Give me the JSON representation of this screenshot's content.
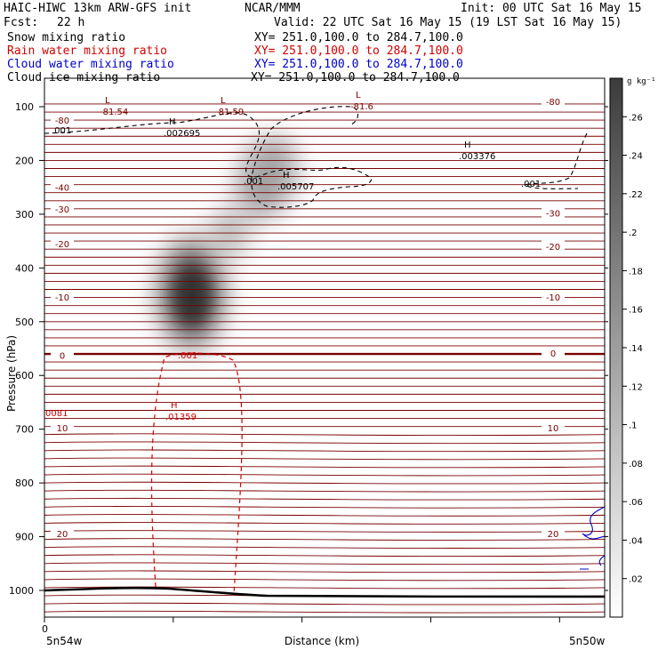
{
  "header": {
    "model": "HAIC-HIWC 13km ARW-GFS init",
    "org": "NCAR/MMM",
    "init": "Init: 00 UTC Sat 16 May 15",
    "fcst_label": "Fcst:",
    "fcst_value": "22 h",
    "valid": "Valid: 22 UTC Sat 16 May 15 (19 LST Sat 16 May 15)",
    "fields": [
      {
        "name": "Snow mixing ratio",
        "xy": "XY= 251.0,100.0 to 284.7,100.0",
        "color": "#000000"
      },
      {
        "name": "Rain water mixing ratio",
        "xy": "XY= 251.0,100.0 to 284.7,100.0",
        "color": "#d40000"
      },
      {
        "name": "Cloud water mixing ratio",
        "xy": "XY= 251.0,100.0 to 284.7,100.0",
        "color": "#0000cc"
      },
      {
        "name": "Cloud ice mixing ratio",
        "xy": "XY= 251.0,100.0 to 284.7,100.0",
        "color": "#000000"
      }
    ]
  },
  "chart_data": {
    "type": "heatmap",
    "xlabel": "Distance (km)",
    "ylabel": "Pressure (hPa)",
    "x_start_label": "0",
    "x_left_label": "5n54w",
    "x_right_label": "5n50w",
    "ylim": [
      1050,
      50
    ],
    "yticks": [
      100,
      200,
      300,
      400,
      500,
      600,
      700,
      800,
      900,
      1000
    ],
    "colorbar": {
      "unit": "g kg⁻¹",
      "ticks": [
        ".02",
        ".04",
        ".06",
        ".08",
        ".1",
        ".12",
        ".14",
        ".16",
        ".18",
        ".2",
        ".22",
        ".24",
        ".26"
      ],
      "range": [
        0,
        0.28
      ]
    },
    "temperature_contour_labels": [
      {
        "value": "-80",
        "side": "left",
        "p": 125
      },
      {
        "value": "-80",
        "side": "right",
        "p": 90
      },
      {
        "value": "-40",
        "side": "left",
        "p": 250
      },
      {
        "value": "-30",
        "side": "left",
        "p": 290
      },
      {
        "value": "-30",
        "side": "right",
        "p": 298
      },
      {
        "value": "-20",
        "side": "left",
        "p": 355
      },
      {
        "value": "-20",
        "side": "right",
        "p": 360
      },
      {
        "value": "-10",
        "side": "left",
        "p": 454
      },
      {
        "value": "-10",
        "side": "right",
        "p": 454
      },
      {
        "value": "0",
        "side": "left",
        "p": 562
      },
      {
        "value": "0",
        "side": "right",
        "p": 558
      },
      {
        "value": "10",
        "side": "left",
        "p": 697
      },
      {
        "value": "10",
        "side": "right",
        "p": 697
      },
      {
        "value": "20",
        "side": "left",
        "p": 894
      },
      {
        "value": "20",
        "side": "right",
        "p": 894
      }
    ],
    "extrema_labels": [
      {
        "mark": "L",
        "value": "-81.54",
        "color": "#7a0000"
      },
      {
        "mark": "L",
        "value": "-81.59",
        "color": "#7a0000"
      },
      {
        "mark": "L",
        "value": "-81.6",
        "color": "#7a0000"
      },
      {
        "mark": "H",
        "value": ".002695",
        "color": "#000000"
      },
      {
        "mark": "H",
        "value": ".005707",
        "color": "#000000"
      },
      {
        "mark": "H",
        "value": ".003376",
        "color": "#000000"
      },
      {
        "mark": "H",
        "value": ".01359",
        "color": "#d40000"
      }
    ],
    "contour_labels": [
      {
        "value": ".001",
        "color": "#000000"
      },
      {
        "value": ".001",
        "color": "#000000"
      },
      {
        "value": ".001",
        "color": "#000000"
      },
      {
        "value": ".001",
        "color": "#d40000"
      },
      {
        "value": "0081",
        "color": "#d40000"
      }
    ],
    "snow_max_approx": 0.26,
    "snow_max_p": 430
  }
}
